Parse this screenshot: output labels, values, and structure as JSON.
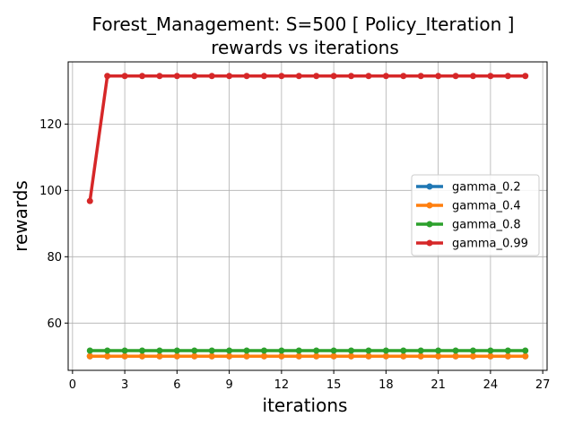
{
  "chart_data": {
    "type": "line",
    "title": "Forest_Management: S=500 [ Policy_Iteration ]",
    "subtitle": "rewards vs iterations",
    "xlabel": "iterations",
    "ylabel": "rewards",
    "xlim": [
      -0.25,
      27.25
    ],
    "ylim": [
      45.75,
      138.75
    ],
    "xticks": [
      0,
      3,
      6,
      9,
      12,
      15,
      18,
      21,
      24,
      27
    ],
    "xtick_labels": [
      "0",
      "3",
      "6",
      "9",
      "12",
      "15",
      "18",
      "21",
      "24",
      "27"
    ],
    "yticks": [
      60,
      80,
      100,
      120
    ],
    "ytick_labels": [
      "60",
      "80",
      "100",
      "120"
    ],
    "grid": true,
    "legend_position": "center-right",
    "x": [
      1,
      2,
      3,
      4,
      5,
      6,
      7,
      8,
      9,
      10,
      11,
      12,
      13,
      14,
      15,
      16,
      17,
      18,
      19,
      20,
      21,
      22,
      23,
      24,
      25,
      26
    ],
    "series": [
      {
        "name": "gamma_0.2",
        "color": "#1f77b4",
        "values": [
          50.0,
          50.0,
          50.0,
          50.0,
          50.0,
          50.0,
          50.0,
          50.0,
          50.0,
          50.0,
          50.0,
          50.0,
          50.0,
          50.0,
          50.0,
          50.0,
          50.0,
          50.0,
          50.0,
          50.0,
          50.0,
          50.0,
          50.0,
          50.0,
          50.0,
          50.0
        ]
      },
      {
        "name": "gamma_0.4",
        "color": "#ff7f0e",
        "values": [
          50.0,
          50.0,
          50.0,
          50.0,
          50.0,
          50.0,
          50.0,
          50.0,
          50.0,
          50.0,
          50.0,
          50.0,
          50.0,
          50.0,
          50.0,
          50.0,
          50.0,
          50.0,
          50.0,
          50.0,
          50.0,
          50.0,
          50.0,
          50.0,
          50.0,
          50.0
        ]
      },
      {
        "name": "gamma_0.8",
        "color": "#2ca02c",
        "values": [
          51.7,
          51.7,
          51.7,
          51.7,
          51.7,
          51.7,
          51.7,
          51.7,
          51.7,
          51.7,
          51.7,
          51.7,
          51.7,
          51.7,
          51.7,
          51.7,
          51.7,
          51.7,
          51.7,
          51.7,
          51.7,
          51.7,
          51.7,
          51.7,
          51.7,
          51.7
        ]
      },
      {
        "name": "gamma_0.99",
        "color": "#d62728",
        "values": [
          96.8,
          134.5,
          134.5,
          134.5,
          134.5,
          134.5,
          134.5,
          134.5,
          134.5,
          134.5,
          134.5,
          134.5,
          134.5,
          134.5,
          134.5,
          134.5,
          134.5,
          134.5,
          134.5,
          134.5,
          134.5,
          134.5,
          134.5,
          134.5,
          134.5,
          134.5
        ]
      }
    ]
  }
}
